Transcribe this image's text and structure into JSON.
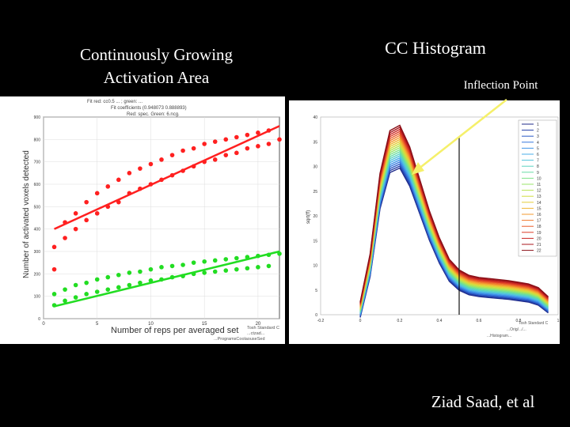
{
  "slide": {
    "left_title_line1": "Continuously Growing",
    "left_title_line2": "Activation Area",
    "right_title": "CC Histogram",
    "inflection_label": "Inflection Point",
    "author": "Ziad Saad, et al"
  },
  "colors": {
    "red": "#ff2020",
    "green": "#22dd22",
    "arrow": "#f5f06a",
    "background": "#000000"
  },
  "chart_data": [
    {
      "type": "scatter",
      "xlabel": "Number of reps per averaged set",
      "ylabel": "Number of activated voxels detected",
      "xlim": [
        0,
        22
      ],
      "ylim": [
        0,
        900
      ],
      "xticks": [
        "0",
        "5",
        "10",
        "15",
        "20"
      ],
      "yticks": [
        "0",
        "100",
        "200",
        "300",
        "400",
        "500",
        "600",
        "700",
        "800",
        "900"
      ],
      "grid": true,
      "header_lines": [
        "Fit red: cc0.5 ... ; green: ...",
        "Fit coefficients (0.948073 0.888893)",
        "Red: spec. Green: 6.ncg."
      ],
      "footer_lines": [
        "Tosh Standard C",
        "...ctzad...",
        "...ProgramsCoolaouseSed"
      ],
      "series": [
        {
          "color": "red",
          "x": [
            1,
            1,
            2,
            2,
            3,
            3,
            4,
            4,
            5,
            5,
            6,
            6,
            7,
            7,
            8,
            8,
            9,
            9,
            10,
            10,
            11,
            11,
            12,
            12,
            13,
            13,
            14,
            14,
            15,
            15,
            16,
            16,
            17,
            17,
            18,
            18,
            19,
            19,
            20,
            20,
            21,
            21,
            22
          ],
          "y": [
            220,
            320,
            360,
            430,
            400,
            470,
            440,
            520,
            470,
            560,
            500,
            590,
            520,
            620,
            560,
            650,
            580,
            670,
            600,
            690,
            620,
            710,
            640,
            730,
            660,
            750,
            680,
            760,
            700,
            780,
            710,
            790,
            730,
            800,
            740,
            810,
            760,
            820,
            770,
            830,
            780,
            840,
            800
          ]
        },
        {
          "color": "green",
          "x": [
            1,
            1,
            2,
            2,
            3,
            3,
            4,
            4,
            5,
            5,
            6,
            6,
            7,
            7,
            8,
            8,
            9,
            9,
            10,
            10,
            11,
            11,
            12,
            12,
            13,
            13,
            14,
            14,
            15,
            15,
            16,
            16,
            17,
            17,
            18,
            18,
            19,
            19,
            20,
            20,
            21,
            21,
            22
          ],
          "y": [
            60,
            110,
            80,
            130,
            95,
            150,
            110,
            160,
            120,
            175,
            130,
            185,
            140,
            195,
            150,
            205,
            160,
            210,
            170,
            220,
            175,
            230,
            185,
            235,
            190,
            240,
            200,
            250,
            205,
            255,
            210,
            260,
            215,
            265,
            220,
            270,
            225,
            275,
            230,
            280,
            235,
            285,
            290
          ]
        }
      ],
      "fit_lines": [
        {
          "color": "red",
          "x": [
            1,
            22
          ],
          "y": [
            400,
            860
          ]
        },
        {
          "color": "green",
          "x": [
            1,
            22
          ],
          "y": [
            55,
            300
          ]
        }
      ]
    },
    {
      "type": "line",
      "xlabel": "",
      "ylabel": "sqrt(ff)",
      "xlim": [
        -0.2,
        1.0
      ],
      "ylim": [
        0,
        40
      ],
      "xticks": [
        "-0.2",
        "0",
        "0.2",
        "0.4",
        "0.6",
        "0.8",
        "1"
      ],
      "yticks": [
        "0",
        "5",
        "10",
        "15",
        "20",
        "25",
        "30",
        "35",
        "40"
      ],
      "inflection_x": 0.5,
      "legend_position": "right",
      "legend": [
        "1",
        "2",
        "3",
        "4",
        "5",
        "6",
        "7",
        "8",
        "9",
        "10",
        "11",
        "12",
        "13",
        "14",
        "15",
        "16",
        "17",
        "18",
        "19",
        "20",
        "21",
        "22"
      ],
      "series_shape": {
        "x": [
          0,
          0.05,
          0.1,
          0.15,
          0.2,
          0.25,
          0.3,
          0.35,
          0.4,
          0.45,
          0.5,
          0.55,
          0.6,
          0.65,
          0.7,
          0.75,
          0.8,
          0.85,
          0.9,
          0.95
        ],
        "y": [
          1,
          10,
          25,
          33,
          34,
          30,
          24,
          18,
          13,
          9,
          7,
          6,
          5.6,
          5.4,
          5.2,
          5.0,
          4.7,
          4.4,
          3.7,
          2
        ]
      },
      "footer_lines": [
        "Tosh Standard C",
        "...Orig/.../...",
        "...Histogram..."
      ]
    }
  ]
}
